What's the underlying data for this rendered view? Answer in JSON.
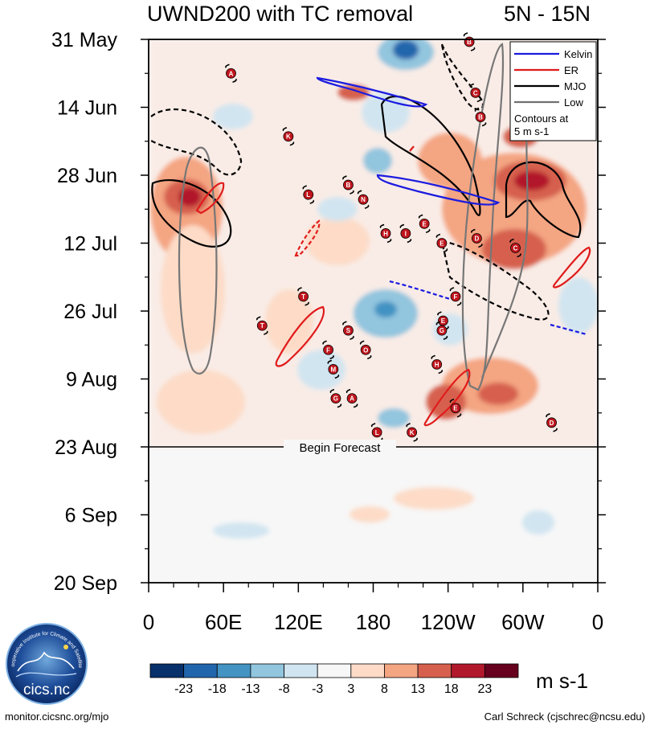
{
  "chart_data": {
    "type": "heatmap",
    "title": "UWND200 with TC removal",
    "subtitle": "5N - 15N",
    "x_axis": {
      "ticks": [
        "0",
        "60E",
        "120E",
        "180",
        "120W",
        "60W",
        "0"
      ],
      "tick_lon": [
        0,
        60,
        120,
        180,
        240,
        300,
        360
      ],
      "range": [
        0,
        360
      ]
    },
    "y_axis": {
      "ticks": [
        "31 May",
        "14 Jun",
        "28 Jun",
        "12 Jul",
        "26 Jul",
        "9 Aug",
        "23 Aug",
        "6 Sep",
        "20 Sep"
      ],
      "tick_day": [
        0,
        14,
        28,
        42,
        56,
        70,
        84,
        98,
        112
      ],
      "range_days": [
        0,
        112
      ]
    },
    "forecast_label": "Begin Forecast",
    "forecast_day": 84,
    "legend": {
      "placement": "top-right",
      "entries": [
        {
          "label": "Kelvin",
          "color": "#1b1be0"
        },
        {
          "label": "ER",
          "color": "#e01b1b"
        },
        {
          "label": "MJO",
          "color": "#000000"
        },
        {
          "label": "Low",
          "color": "#707070"
        }
      ],
      "note_line1": "Contours at",
      "note_line2": "5 m s-1"
    },
    "colorbar": {
      "labels": [
        "-23",
        "-18",
        "-13",
        "-8",
        "-3",
        "3",
        "8",
        "13",
        "18",
        "23"
      ],
      "colors": [
        "#08306b",
        "#2166ac",
        "#4393c3",
        "#92c5de",
        "#d1e5f0",
        "#f7f7f7",
        "#fddbc7",
        "#f4a582",
        "#d6604d",
        "#b2182b",
        "#67001f"
      ],
      "units": "m s-1"
    },
    "storms": [
      {
        "letter": "A",
        "lon": 66,
        "day": 7
      },
      {
        "letter": "B",
        "lon": 257,
        "day": 0.5
      },
      {
        "letter": "C",
        "lon": 262,
        "day": 11
      },
      {
        "letter": "B",
        "lon": 266,
        "day": 16
      },
      {
        "letter": "K",
        "lon": 112,
        "day": 20
      },
      {
        "letter": "L",
        "lon": 128,
        "day": 32
      },
      {
        "letter": "B",
        "lon": 160,
        "day": 30
      },
      {
        "letter": "N",
        "lon": 172,
        "day": 33
      },
      {
        "letter": "H",
        "lon": 190,
        "day": 40
      },
      {
        "letter": "I",
        "lon": 206,
        "day": 40
      },
      {
        "letter": "E",
        "lon": 221,
        "day": 38
      },
      {
        "letter": "D",
        "lon": 263,
        "day": 41
      },
      {
        "letter": "E",
        "lon": 235,
        "day": 42
      },
      {
        "letter": "C",
        "lon": 294,
        "day": 43
      },
      {
        "letter": "T",
        "lon": 124,
        "day": 53
      },
      {
        "letter": "F",
        "lon": 246,
        "day": 53
      },
      {
        "letter": "T",
        "lon": 91,
        "day": 59
      },
      {
        "letter": "S",
        "lon": 160,
        "day": 60
      },
      {
        "letter": "E",
        "lon": 236,
        "day": 58
      },
      {
        "letter": "G",
        "lon": 235,
        "day": 60
      },
      {
        "letter": "F",
        "lon": 144,
        "day": 64
      },
      {
        "letter": "O",
        "lon": 174,
        "day": 64
      },
      {
        "letter": "M",
        "lon": 148,
        "day": 68
      },
      {
        "letter": "H",
        "lon": 231,
        "day": 67
      },
      {
        "letter": "G",
        "lon": 150,
        "day": 74
      },
      {
        "letter": "A",
        "lon": 163,
        "day": 74
      },
      {
        "letter": "E",
        "lon": 246,
        "day": 76
      },
      {
        "letter": "D",
        "lon": 323,
        "day": 79
      },
      {
        "letter": "L",
        "lon": 183,
        "day": 81
      },
      {
        "letter": "K",
        "lon": 211,
        "day": 81
      }
    ]
  },
  "footer": {
    "left": "monitor.cicsnc.org/mjo",
    "right": "Carl Schreck (cjschrec@ncsu.edu)"
  },
  "logo": {
    "text": "cics.nc",
    "ring_text": "Cooperative Institute for Climate and Satellites"
  }
}
